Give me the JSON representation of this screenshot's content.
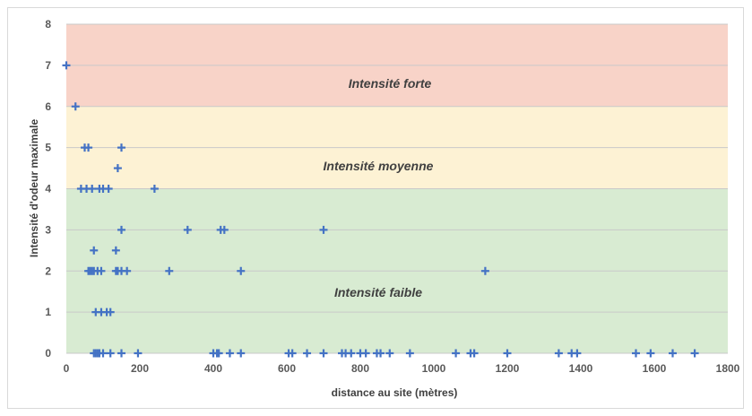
{
  "chart_data": {
    "type": "scatter",
    "title": "",
    "xlabel": "distance au site (mètres)",
    "ylabel": "Intensité d'odeur maximale",
    "xlim": [
      0,
      1800
    ],
    "ylim": [
      0,
      8
    ],
    "x_ticks": [
      0,
      200,
      400,
      600,
      800,
      1000,
      1200,
      1400,
      1600,
      1800
    ],
    "y_ticks": [
      0,
      1,
      2,
      3,
      4,
      5,
      6,
      7,
      8
    ],
    "grid": "horizontal",
    "marker": "plus",
    "marker_color": "#4472c4",
    "zones": [
      {
        "label": "Intensité forte",
        "from": 6,
        "to": 8,
        "color": "#f8d3c8"
      },
      {
        "label": "Intensité moyenne",
        "from": 4,
        "to": 6,
        "color": "#fdf2d4"
      },
      {
        "label": "Intensité faible",
        "from": 0,
        "to": 4,
        "color": "#d8ebd2"
      }
    ],
    "series": [
      {
        "points": [
          [
            0,
            7
          ],
          [
            25,
            6
          ],
          [
            50,
            5
          ],
          [
            60,
            5
          ],
          [
            150,
            5
          ],
          [
            140,
            4.5
          ],
          [
            40,
            4
          ],
          [
            55,
            4
          ],
          [
            70,
            4
          ],
          [
            90,
            4
          ],
          [
            100,
            4
          ],
          [
            115,
            4
          ],
          [
            240,
            4
          ],
          [
            150,
            3
          ],
          [
            330,
            3
          ],
          [
            420,
            3
          ],
          [
            430,
            3
          ],
          [
            700,
            3
          ],
          [
            75,
            2.5
          ],
          [
            135,
            2.5
          ],
          [
            60,
            2
          ],
          [
            65,
            2
          ],
          [
            70,
            2
          ],
          [
            75,
            2
          ],
          [
            85,
            2
          ],
          [
            95,
            2
          ],
          [
            135,
            2
          ],
          [
            140,
            2
          ],
          [
            150,
            2
          ],
          [
            165,
            2
          ],
          [
            280,
            2
          ],
          [
            475,
            2
          ],
          [
            1140,
            2
          ],
          [
            80,
            1
          ],
          [
            95,
            1
          ],
          [
            110,
            1
          ],
          [
            120,
            1
          ],
          [
            75,
            0
          ],
          [
            80,
            0
          ],
          [
            85,
            0
          ],
          [
            90,
            0
          ],
          [
            100,
            0
          ],
          [
            120,
            0
          ],
          [
            150,
            0
          ],
          [
            195,
            0
          ],
          [
            400,
            0
          ],
          [
            410,
            0
          ],
          [
            415,
            0
          ],
          [
            445,
            0
          ],
          [
            475,
            0
          ],
          [
            605,
            0
          ],
          [
            615,
            0
          ],
          [
            655,
            0
          ],
          [
            700,
            0
          ],
          [
            750,
            0
          ],
          [
            760,
            0
          ],
          [
            775,
            0
          ],
          [
            800,
            0
          ],
          [
            815,
            0
          ],
          [
            845,
            0
          ],
          [
            855,
            0
          ],
          [
            880,
            0
          ],
          [
            935,
            0
          ],
          [
            1060,
            0
          ],
          [
            1100,
            0
          ],
          [
            1110,
            0
          ],
          [
            1200,
            0
          ],
          [
            1340,
            0
          ],
          [
            1375,
            0
          ],
          [
            1390,
            0
          ],
          [
            1550,
            0
          ],
          [
            1590,
            0
          ],
          [
            1650,
            0
          ],
          [
            1710,
            0
          ]
        ]
      }
    ]
  }
}
